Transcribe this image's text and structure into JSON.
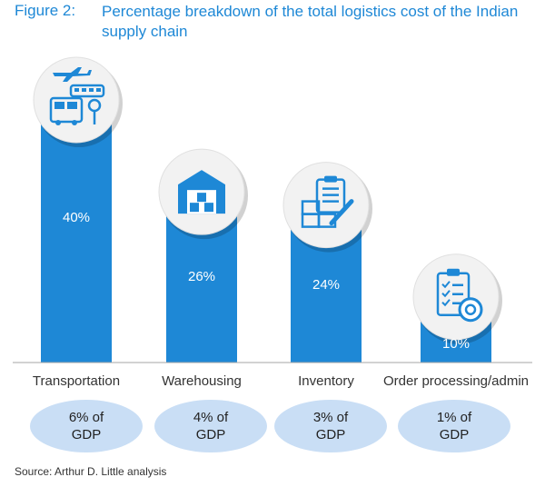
{
  "figure": {
    "label": "Figure 2:",
    "title": "Percentage breakdown of the total logistics cost of the Indian supply chain"
  },
  "chart_data": {
    "type": "bar",
    "categories": [
      "Transportation",
      "Warehousing",
      "Inventory",
      "Order processing/admin"
    ],
    "values": [
      40,
      26,
      24,
      10
    ],
    "value_labels": [
      "40%",
      "26%",
      "24%",
      "10%"
    ],
    "ylim": [
      0,
      45
    ],
    "grid": false,
    "bar_color": "#1e88d6",
    "icons": [
      "transport-icon",
      "warehouse-icon",
      "inventory-icon",
      "clipboard-icon"
    ]
  },
  "gdp_share": [
    {
      "line1": "6% of",
      "line2": "GDP"
    },
    {
      "line1": "4% of",
      "line2": "GDP"
    },
    {
      "line1": "3% of",
      "line2": "GDP"
    },
    {
      "line1": "1% of",
      "line2": "GDP"
    }
  ],
  "source": "Source: Arthur D. Little analysis"
}
